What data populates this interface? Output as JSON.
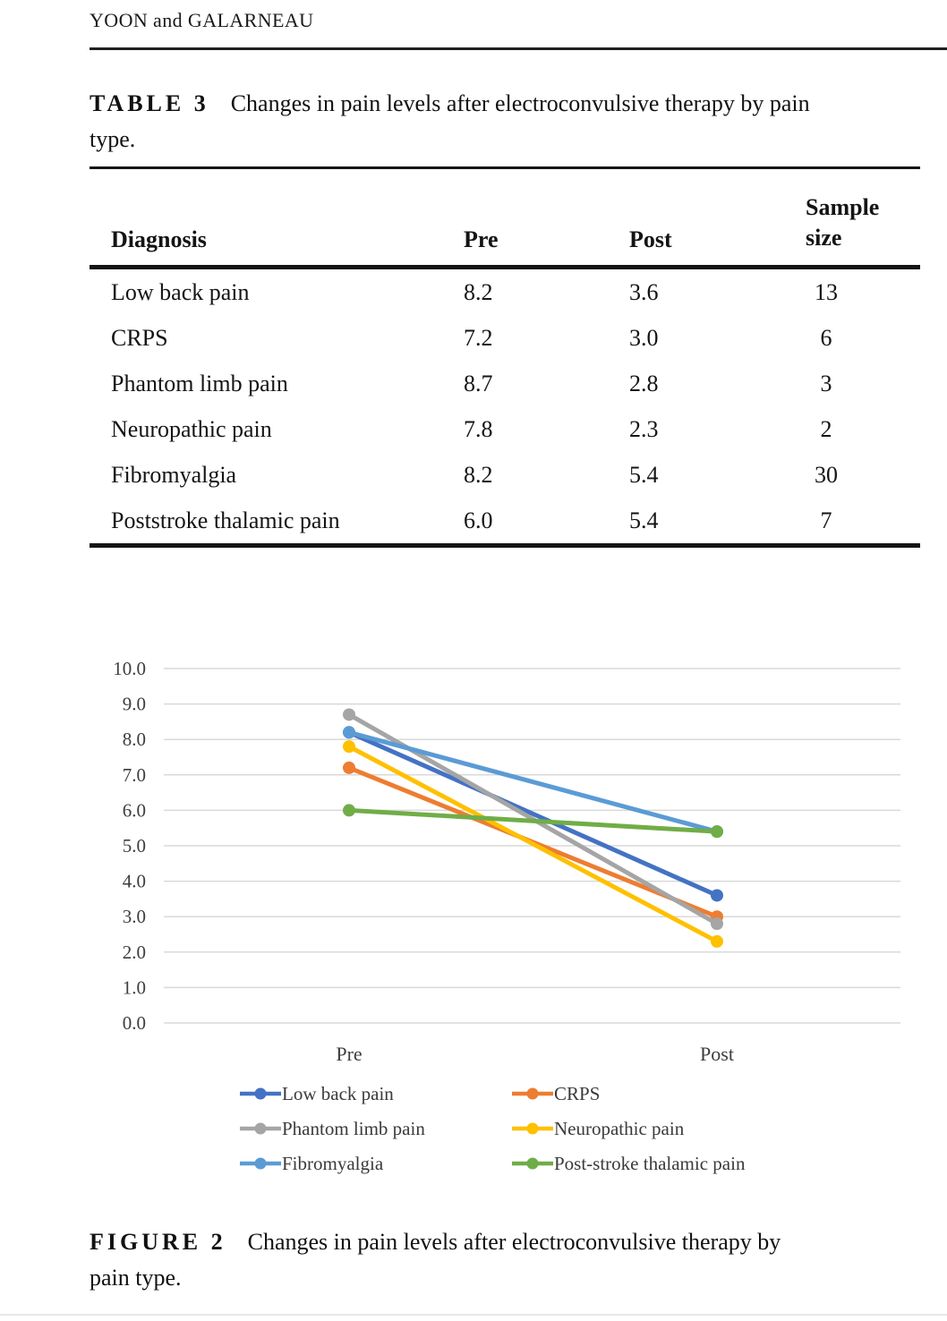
{
  "page": {
    "running_head": "YOON and GALARNEAU"
  },
  "table": {
    "label": "TABLE 3",
    "caption": "Changes in pain levels after electroconvulsive therapy by pain type.",
    "columns": [
      "Diagnosis",
      "Pre",
      "Post",
      "Sample size"
    ],
    "rows": [
      {
        "diagnosis": "Low back pain",
        "pre": "8.2",
        "post": "3.6",
        "n": "13"
      },
      {
        "diagnosis": "CRPS",
        "pre": "7.2",
        "post": "3.0",
        "n": "6"
      },
      {
        "diagnosis": "Phantom limb pain",
        "pre": "8.7",
        "post": "2.8",
        "n": "3"
      },
      {
        "diagnosis": "Neuropathic pain",
        "pre": "7.8",
        "post": "2.3",
        "n": "2"
      },
      {
        "diagnosis": "Fibromyalgia",
        "pre": "8.2",
        "post": "5.4",
        "n": "30"
      },
      {
        "diagnosis": "Poststroke thalamic pain",
        "pre": "6.0",
        "post": "5.4",
        "n": "7"
      }
    ]
  },
  "figure": {
    "label": "FIGURE 2",
    "caption": "Changes in pain levels after electroconvulsive therapy by pain type."
  },
  "chart_data": {
    "type": "line",
    "x": [
      "Pre",
      "Post"
    ],
    "series": [
      {
        "name": "Low back pain",
        "values": [
          8.2,
          3.6
        ],
        "color": "#4472C4"
      },
      {
        "name": "CRPS",
        "values": [
          7.2,
          3.0
        ],
        "color": "#ED7D31"
      },
      {
        "name": "Phantom limb pain",
        "values": [
          8.7,
          2.8
        ],
        "color": "#A5A5A5"
      },
      {
        "name": "Neuropathic pain",
        "values": [
          7.8,
          2.3
        ],
        "color": "#FFC000"
      },
      {
        "name": "Fibromyalgia",
        "values": [
          8.2,
          5.4
        ],
        "color": "#5B9BD5"
      },
      {
        "name": "Post-stroke thalamic pain",
        "values": [
          6.0,
          5.4
        ],
        "color": "#70AD47"
      }
    ],
    "ylim": [
      0,
      10
    ],
    "ytick_step": 1.0,
    "ytick_labels": [
      "0.0",
      "1.0",
      "2.0",
      "3.0",
      "4.0",
      "5.0",
      "6.0",
      "7.0",
      "8.0",
      "9.0",
      "10.0"
    ],
    "grid": "horizontal",
    "grid_color": "#d9d9d9",
    "legend_position": "bottom",
    "legend_columns": 2
  }
}
